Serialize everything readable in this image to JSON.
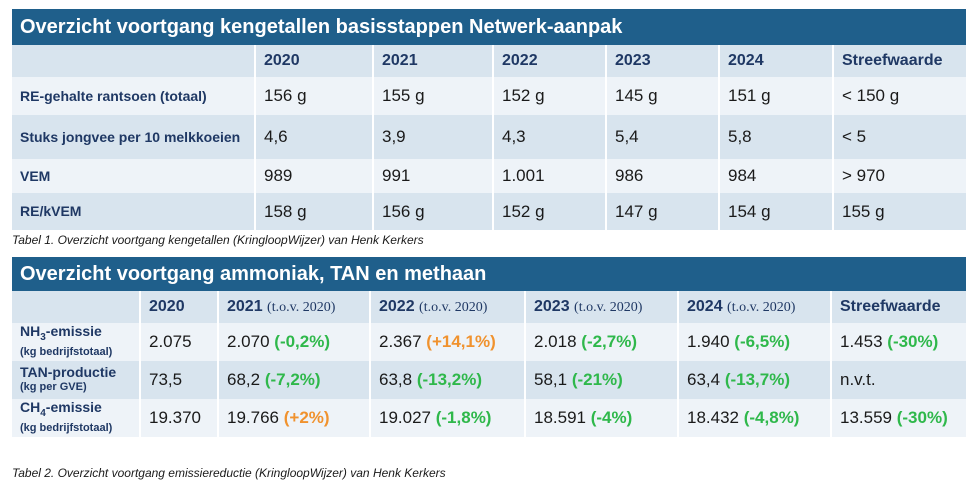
{
  "table1": {
    "title": "Overzicht voortgang kengetallen basisstappen Netwerk-aanpak",
    "headers": [
      "",
      "2020",
      "2021",
      "2022",
      "2023",
      "2024",
      "Streefwaarde"
    ],
    "rows": [
      {
        "label": "RE-gehalte rantsoen (totaal)",
        "values": [
          "156 g",
          "155 g",
          "152 g",
          "145 g",
          "151 g",
          "< 150 g"
        ]
      },
      {
        "label": "Stuks jongvee per 10 melkkoeien",
        "values": [
          "4,6",
          "3,9",
          "4,3",
          "5,4",
          "5,8",
          "< 5"
        ]
      },
      {
        "label": "VEM",
        "values": [
          "989",
          "991",
          "1.001",
          "986",
          "984",
          "> 970"
        ]
      },
      {
        "label": "RE/kVEM",
        "values": [
          "158 g",
          "156 g",
          "152 g",
          "147 g",
          "154 g",
          "155 g"
        ]
      }
    ],
    "caption": "Tabel 1. Overzicht voortgang kengetallen (KringloopWijzer) van Henk Kerkers"
  },
  "table2": {
    "title": "Overzicht voortgang ammoniak, TAN en methaan",
    "headers": {
      "c0": "",
      "c1": "2020",
      "c2": {
        "year": "2021",
        "sub": "(t.o.v. 2020)"
      },
      "c3": {
        "year": "2022",
        "sub": "(t.o.v. 2020)"
      },
      "c4": {
        "year": "2023",
        "sub": "(t.o.v. 2020)"
      },
      "c5": {
        "year": "2024",
        "sub": "(t.o.v. 2020)"
      },
      "c6": "Streefwaarde"
    },
    "rows": [
      {
        "label_main": "NH",
        "label_subscript": "3",
        "label_suffix": "-emissie",
        "unit": "(kg bedrijfstotaal)",
        "v2020": "2.075",
        "v2021": {
          "value": "2.070",
          "change": "(-0,2%)",
          "color": "#2fb84b"
        },
        "v2022": {
          "value": "2.367",
          "change": "(+14,1%)",
          "color": "#f0922e"
        },
        "v2023": {
          "value": "2.018",
          "change": "(-2,7%)",
          "color": "#2fb84b"
        },
        "v2024": {
          "value": "1.940",
          "change": "(-6,5%)",
          "color": "#2fb84b"
        },
        "target": {
          "value": "1.453",
          "change": "(-30%)",
          "color": "#2fb84b"
        }
      },
      {
        "label_main": "TAN-productie",
        "label_subscript": "",
        "label_suffix": "",
        "unit": "(kg per GVE)",
        "v2020": "73,5",
        "v2021": {
          "value": "68,2",
          "change": "(-7,2%)",
          "color": "#2fb84b"
        },
        "v2022": {
          "value": "63,8",
          "change": "(-13,2%)",
          "color": "#2fb84b"
        },
        "v2023": {
          "value": "58,1",
          "change": "(-21%)",
          "color": "#2fb84b"
        },
        "v2024": {
          "value": "63,4",
          "change": "(-13,7%)",
          "color": "#2fb84b"
        },
        "target": {
          "value": "n.v.t.",
          "change": "",
          "color": "#2fb84b"
        }
      },
      {
        "label_main": "CH",
        "label_subscript": "4",
        "label_suffix": "-emissie",
        "unit": "(kg bedrijfstotaal)",
        "v2020": "19.370",
        "v2021": {
          "value": "19.766",
          "change": "(+2%)",
          "color": "#f0922e"
        },
        "v2022": {
          "value": "19.027",
          "change": "(-1,8%)",
          "color": "#2fb84b"
        },
        "v2023": {
          "value": "18.591",
          "change": "(-4%)",
          "color": "#2fb84b"
        },
        "v2024": {
          "value": "18.432",
          "change": "(-4,8%)",
          "color": "#2fb84b"
        },
        "target": {
          "value": "13.559",
          "change": "(-30%)",
          "color": "#2fb84b"
        }
      }
    ],
    "caption": "Tabel 2. Overzicht voortgang emissiereductie (KringloopWijzer) van Henk Kerkers"
  },
  "colors": {
    "title_bar": "#1f5f8b",
    "row_dark": "#d8e4ee",
    "row_light": "#eef3f8",
    "label_text": "#1f3864",
    "decrease": "#2fb84b",
    "increase": "#f0922e"
  }
}
